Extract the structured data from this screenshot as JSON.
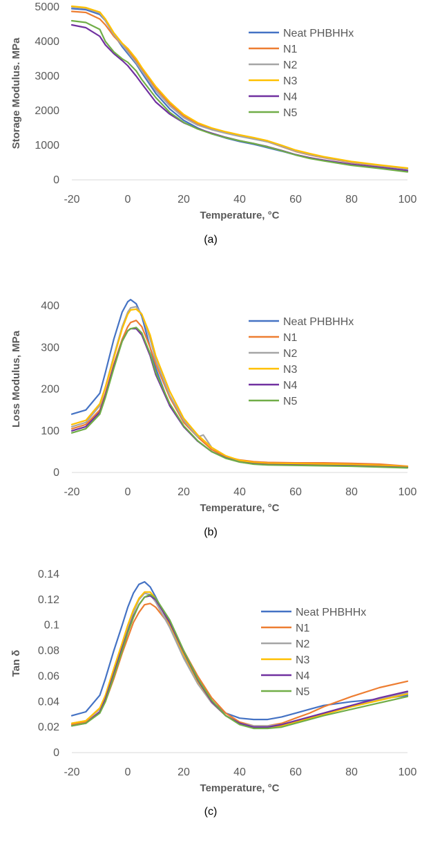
{
  "chart_data": [
    {
      "type": "line",
      "caption": "(a)",
      "xlabel": "Temperature, °C",
      "ylabel": "Storage Modulus. MPa",
      "xlim": [
        -20,
        100
      ],
      "ylim": [
        0,
        5000
      ],
      "xticks": [
        -20,
        0,
        20,
        40,
        60,
        80,
        100
      ],
      "yticks": [
        0,
        1000,
        2000,
        3000,
        4000,
        5000
      ],
      "grid": false,
      "legend_position": "upper-right",
      "series": [
        {
          "name": "Neat PHBHHx",
          "color": "#4472C4",
          "x": [
            -20,
            -15,
            -10,
            -8,
            -5,
            -2,
            0,
            3,
            5,
            10,
            15,
            20,
            25,
            30,
            35,
            40,
            45,
            50,
            55,
            60,
            65,
            70,
            80,
            90,
            100
          ],
          "y": [
            4950,
            4920,
            4780,
            4600,
            4200,
            3850,
            3650,
            3350,
            3100,
            2500,
            2050,
            1720,
            1500,
            1330,
            1210,
            1110,
            1030,
            930,
            830,
            720,
            630,
            560,
            430,
            340,
            250
          ]
        },
        {
          "name": "N1",
          "color": "#ED7D31",
          "x": [
            -20,
            -15,
            -10,
            -8,
            -5,
            -2,
            0,
            3,
            5,
            10,
            15,
            20,
            25,
            30,
            35,
            40,
            45,
            50,
            55,
            60,
            65,
            70,
            80,
            90,
            100
          ],
          "y": [
            4870,
            4840,
            4650,
            4480,
            4150,
            3900,
            3750,
            3450,
            3200,
            2650,
            2200,
            1850,
            1620,
            1470,
            1360,
            1270,
            1190,
            1100,
            960,
            820,
            720,
            640,
            500,
            400,
            320
          ]
        },
        {
          "name": "N2",
          "color": "#A5A5A5",
          "x": [
            -20,
            -15,
            -10,
            -8,
            -5,
            -2,
            0,
            3,
            5,
            10,
            15,
            20,
            25,
            30,
            35,
            40,
            45,
            50,
            55,
            60,
            65,
            70,
            80,
            90,
            100
          ],
          "y": [
            5000,
            4960,
            4820,
            4600,
            4200,
            3900,
            3700,
            3380,
            3150,
            2580,
            2140,
            1800,
            1580,
            1450,
            1350,
            1260,
            1180,
            1100,
            970,
            830,
            730,
            650,
            510,
            410,
            320
          ]
        },
        {
          "name": "N3",
          "color": "#FFC000",
          "x": [
            -20,
            -15,
            -10,
            -8,
            -5,
            -2,
            0,
            3,
            5,
            10,
            15,
            20,
            25,
            30,
            35,
            40,
            45,
            50,
            55,
            60,
            65,
            70,
            80,
            90,
            100
          ],
          "y": [
            5020,
            4980,
            4850,
            4650,
            4250,
            3950,
            3800,
            3500,
            3250,
            2700,
            2250,
            1890,
            1650,
            1500,
            1390,
            1300,
            1220,
            1130,
            1000,
            860,
            760,
            670,
            530,
            430,
            340
          ]
        },
        {
          "name": "N4",
          "color": "#7030A0",
          "x": [
            -20,
            -15,
            -10,
            -8,
            -5,
            -2,
            0,
            3,
            5,
            10,
            15,
            20,
            25,
            30,
            35,
            40,
            45,
            50,
            55,
            60,
            65,
            70,
            80,
            90,
            100
          ],
          "y": [
            4480,
            4400,
            4150,
            3900,
            3650,
            3450,
            3300,
            3000,
            2780,
            2250,
            1900,
            1650,
            1480,
            1350,
            1230,
            1130,
            1050,
            960,
            850,
            730,
            640,
            570,
            450,
            360,
            270
          ]
        },
        {
          "name": "N5",
          "color": "#70AD47",
          "x": [
            -20,
            -15,
            -10,
            -8,
            -5,
            -2,
            0,
            3,
            5,
            10,
            15,
            20,
            25,
            30,
            35,
            40,
            45,
            50,
            55,
            60,
            65,
            70,
            80,
            90,
            100
          ],
          "y": [
            4600,
            4550,
            4350,
            4000,
            3700,
            3500,
            3400,
            3150,
            2900,
            2380,
            1950,
            1660,
            1470,
            1330,
            1220,
            1130,
            1050,
            950,
            840,
            720,
            620,
            550,
            420,
            330,
            230
          ]
        }
      ]
    },
    {
      "type": "line",
      "caption": "(b)",
      "xlabel": "Temperature, °C",
      "ylabel": "Loss Modulus, MPa",
      "xlim": [
        -20,
        100
      ],
      "ylim": [
        0,
        450
      ],
      "xticks": [
        -20,
        0,
        20,
        40,
        60,
        80,
        100
      ],
      "yticks": [
        0,
        100,
        200,
        300,
        400
      ],
      "grid": false,
      "legend_position": "upper-right",
      "series": [
        {
          "name": "Neat PHBHHx",
          "color": "#4472C4",
          "x": [
            -20,
            -15,
            -10,
            -8,
            -5,
            -2,
            0,
            1,
            3,
            5,
            8,
            10,
            15,
            20,
            25,
            30,
            35,
            40,
            45,
            50,
            60,
            70,
            80,
            90,
            100
          ],
          "y": [
            140,
            150,
            190,
            240,
            320,
            385,
            410,
            415,
            405,
            375,
            300,
            250,
            160,
            110,
            75,
            50,
            35,
            27,
            23,
            21,
            20,
            19,
            17,
            15,
            12
          ]
        },
        {
          "name": "N1",
          "color": "#ED7D31",
          "x": [
            -20,
            -15,
            -10,
            -8,
            -5,
            -2,
            0,
            1,
            3,
            5,
            8,
            10,
            15,
            20,
            25,
            30,
            35,
            40,
            45,
            50,
            60,
            70,
            80,
            90,
            100
          ],
          "y": [
            105,
            115,
            150,
            190,
            260,
            320,
            350,
            360,
            365,
            350,
            300,
            260,
            180,
            120,
            85,
            55,
            38,
            30,
            26,
            24,
            23,
            23,
            22,
            20,
            15
          ]
        },
        {
          "name": "N2",
          "color": "#A5A5A5",
          "x": [
            -20,
            -15,
            -10,
            -8,
            -5,
            -2,
            0,
            1,
            3,
            5,
            8,
            10,
            15,
            20,
            25,
            27,
            30,
            35,
            40,
            45,
            50,
            60,
            70,
            80,
            90,
            100
          ],
          "y": [
            110,
            120,
            160,
            205,
            280,
            350,
            385,
            395,
            398,
            380,
            320,
            270,
            185,
            125,
            85,
            90,
            60,
            40,
            28,
            22,
            20,
            18,
            17,
            16,
            14,
            12
          ]
        },
        {
          "name": "N3",
          "color": "#FFC000",
          "x": [
            -20,
            -15,
            -10,
            -8,
            -5,
            -2,
            0,
            1,
            3,
            5,
            8,
            10,
            15,
            20,
            25,
            30,
            35,
            40,
            45,
            50,
            60,
            70,
            80,
            90,
            100
          ],
          "y": [
            115,
            125,
            165,
            205,
            275,
            345,
            380,
            390,
            392,
            380,
            330,
            280,
            195,
            130,
            90,
            60,
            40,
            29,
            24,
            22,
            21,
            20,
            19,
            17,
            14
          ]
        },
        {
          "name": "N4",
          "color": "#7030A0",
          "x": [
            -20,
            -15,
            -10,
            -8,
            -5,
            -2,
            0,
            1,
            3,
            5,
            8,
            10,
            15,
            20,
            25,
            30,
            35,
            40,
            45,
            50,
            60,
            70,
            80,
            90,
            100
          ],
          "y": [
            100,
            110,
            145,
            185,
            255,
            315,
            340,
            345,
            345,
            330,
            280,
            235,
            160,
            110,
            75,
            50,
            35,
            25,
            21,
            19,
            18,
            17,
            16,
            14,
            12
          ]
        },
        {
          "name": "N5",
          "color": "#70AD47",
          "x": [
            -20,
            -15,
            -10,
            -8,
            -5,
            -2,
            0,
            1,
            3,
            5,
            8,
            10,
            15,
            20,
            25,
            30,
            35,
            40,
            45,
            50,
            60,
            70,
            80,
            90,
            100
          ],
          "y": [
            95,
            105,
            140,
            180,
            250,
            315,
            340,
            345,
            348,
            335,
            285,
            240,
            165,
            112,
            76,
            50,
            34,
            25,
            20,
            18,
            17,
            16,
            15,
            13,
            11
          ]
        }
      ]
    },
    {
      "type": "line",
      "caption": "(c)",
      "xlabel": "Temperature, °C",
      "ylabel": "Tan δ",
      "xlim": [
        -20,
        100
      ],
      "ylim": [
        0,
        0.14
      ],
      "xticks": [
        -20,
        0,
        20,
        40,
        60,
        80,
        100
      ],
      "yticks": [
        0,
        0.02,
        0.04,
        0.06,
        0.08,
        0.1,
        0.12,
        0.14
      ],
      "grid": false,
      "legend_position": "upper-right",
      "series": [
        {
          "name": "Neat PHBHHx",
          "color": "#4472C4",
          "x": [
            -20,
            -15,
            -10,
            -8,
            -5,
            -2,
            0,
            2,
            4,
            6,
            8,
            10,
            15,
            20,
            25,
            30,
            35,
            40,
            45,
            50,
            55,
            60,
            65,
            70,
            80,
            90,
            100
          ],
          "y": [
            0.029,
            0.032,
            0.045,
            0.058,
            0.08,
            0.1,
            0.114,
            0.125,
            0.132,
            0.134,
            0.13,
            0.122,
            0.1,
            0.076,
            0.055,
            0.04,
            0.031,
            0.027,
            0.026,
            0.026,
            0.028,
            0.031,
            0.034,
            0.037,
            0.04,
            0.042,
            0.045
          ]
        },
        {
          "name": "N1",
          "color": "#ED7D31",
          "x": [
            -20,
            -15,
            -10,
            -8,
            -5,
            -2,
            0,
            2,
            4,
            6,
            8,
            10,
            15,
            20,
            25,
            30,
            35,
            40,
            45,
            50,
            55,
            60,
            65,
            70,
            80,
            90,
            100
          ],
          "y": [
            0.022,
            0.024,
            0.032,
            0.04,
            0.058,
            0.078,
            0.09,
            0.102,
            0.11,
            0.116,
            0.117,
            0.114,
            0.1,
            0.08,
            0.06,
            0.043,
            0.031,
            0.024,
            0.021,
            0.021,
            0.023,
            0.027,
            0.031,
            0.036,
            0.044,
            0.051,
            0.056
          ]
        },
        {
          "name": "N2",
          "color": "#A5A5A5",
          "x": [
            -20,
            -15,
            -10,
            -8,
            -5,
            -2,
            0,
            2,
            4,
            6,
            8,
            10,
            15,
            20,
            25,
            30,
            35,
            40,
            45,
            50,
            55,
            60,
            65,
            70,
            80,
            90,
            100
          ],
          "y": [
            0.023,
            0.025,
            0.034,
            0.044,
            0.064,
            0.084,
            0.098,
            0.11,
            0.12,
            0.125,
            0.124,
            0.118,
            0.098,
            0.074,
            0.054,
            0.039,
            0.029,
            0.023,
            0.021,
            0.021,
            0.022,
            0.025,
            0.028,
            0.031,
            0.037,
            0.042,
            0.047
          ]
        },
        {
          "name": "N3",
          "color": "#FFC000",
          "x": [
            -20,
            -15,
            -10,
            -8,
            -5,
            -2,
            0,
            2,
            4,
            6,
            8,
            10,
            15,
            20,
            25,
            30,
            35,
            40,
            45,
            50,
            55,
            60,
            65,
            70,
            80,
            90,
            100
          ],
          "y": [
            0.023,
            0.025,
            0.035,
            0.045,
            0.066,
            0.086,
            0.1,
            0.112,
            0.121,
            0.126,
            0.126,
            0.121,
            0.101,
            0.077,
            0.056,
            0.04,
            0.029,
            0.023,
            0.02,
            0.02,
            0.021,
            0.024,
            0.027,
            0.03,
            0.036,
            0.041,
            0.046
          ]
        },
        {
          "name": "N4",
          "color": "#7030A0",
          "x": [
            -20,
            -15,
            -10,
            -8,
            -5,
            -2,
            0,
            2,
            4,
            6,
            8,
            10,
            15,
            20,
            25,
            30,
            35,
            40,
            45,
            50,
            55,
            60,
            65,
            70,
            80,
            90,
            100
          ],
          "y": [
            0.021,
            0.023,
            0.032,
            0.042,
            0.062,
            0.082,
            0.095,
            0.107,
            0.116,
            0.122,
            0.123,
            0.12,
            0.102,
            0.079,
            0.057,
            0.04,
            0.029,
            0.023,
            0.02,
            0.02,
            0.022,
            0.025,
            0.028,
            0.031,
            0.037,
            0.043,
            0.048
          ]
        },
        {
          "name": "N5",
          "color": "#70AD47",
          "x": [
            -20,
            -15,
            -10,
            -8,
            -5,
            -2,
            0,
            2,
            4,
            6,
            8,
            10,
            15,
            20,
            25,
            30,
            35,
            40,
            45,
            50,
            55,
            60,
            65,
            70,
            80,
            90,
            100
          ],
          "y": [
            0.021,
            0.023,
            0.031,
            0.04,
            0.06,
            0.08,
            0.094,
            0.106,
            0.116,
            0.122,
            0.124,
            0.121,
            0.104,
            0.08,
            0.058,
            0.041,
            0.029,
            0.022,
            0.019,
            0.019,
            0.02,
            0.023,
            0.026,
            0.029,
            0.034,
            0.039,
            0.044
          ]
        }
      ]
    }
  ]
}
